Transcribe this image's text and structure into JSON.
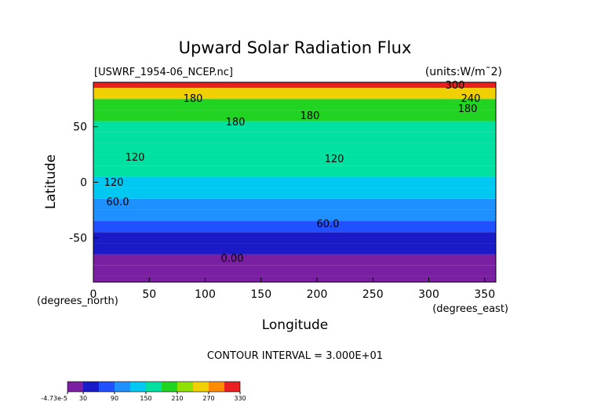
{
  "chart_data": {
    "type": "contour",
    "title": "Upward Solar Radiation Flux",
    "subtitle": "[USWRF_1954-06_NCEP.nc]",
    "units": "(units:W/m¯2)",
    "x_label": "Longitude",
    "y_label": "Latitude",
    "x_unit": "(degrees_east)",
    "y_unit": "(degrees_north)",
    "contour_interval": "CONTOUR INTERVAL = 3.000E+01",
    "xlim": [
      0,
      360
    ],
    "xticks": [
      0,
      50,
      100,
      150,
      200,
      250,
      300,
      350
    ],
    "ylim": [
      -90,
      90
    ],
    "yticks": [
      -50,
      0,
      50
    ],
    "y": [
      -90,
      -80,
      -70,
      -60,
      -50,
      -40,
      -30,
      -20,
      -10,
      0,
      10,
      20,
      30,
      40,
      50,
      60,
      70,
      80,
      90
    ],
    "values": [
      0,
      0,
      0,
      30,
      45,
      75,
      100,
      110,
      120,
      140,
      150,
      160,
      165,
      170,
      175,
      180,
      190,
      260,
      300
    ],
    "contour_labels": [
      "300",
      "240",
      "180",
      "180",
      "180",
      "180",
      "120",
      "120",
      "120",
      "60.0",
      "60.0",
      "0.00"
    ],
    "levels": [
      0,
      30,
      60,
      90,
      120,
      150,
      180,
      210,
      240,
      270,
      300,
      330
    ],
    "colors": [
      "#7a1fa2",
      "#1a1ac8",
      "#2050ff",
      "#1e90ff",
      "#00c8f0",
      "#00e0a0",
      "#22d422",
      "#90e000",
      "#f0d000",
      "#ff8c00",
      "#e82020"
    ],
    "colorbar_ticks": [
      {
        "value": -4.73e-05,
        "label": "-4.73e-5"
      },
      30,
      90,
      150,
      210,
      270,
      330
    ]
  }
}
